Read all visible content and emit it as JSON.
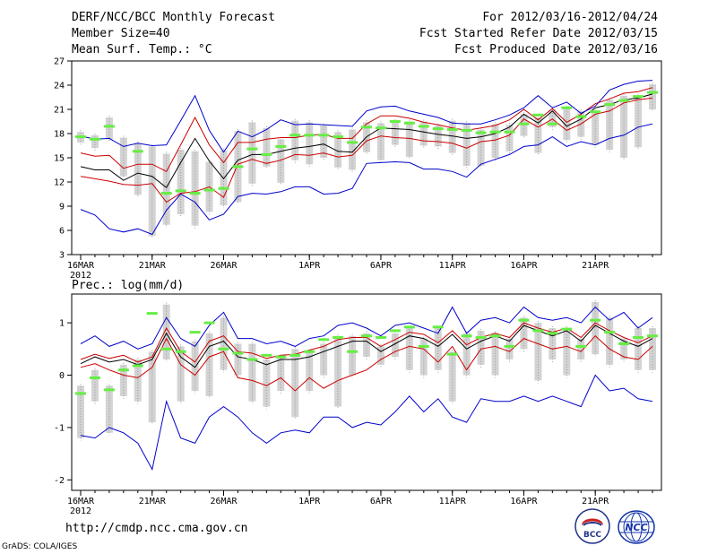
{
  "header": {
    "title": "DERF/NCC/BCC Monthly Forecast",
    "member_size": "Member Size=40",
    "variable": "Mean Surf. Temp.: °C",
    "period": "For 2012/03/16-2012/04/24",
    "started": "Fcst Started Refer Date 2012/03/15",
    "produced": "Fcst Produced Date 2012/03/16"
  },
  "footer": {
    "url": "http://cmdp.ncc.cma.gov.cn",
    "credit": "GrADS: COLA/IGES",
    "logo_bcc": "BCC",
    "logo_ncc": "NCC"
  },
  "colors": {
    "ensemble_mean": "#000000",
    "spread": "#cc0000",
    "extremes": "#0000cc",
    "observation": "#66ee44",
    "bar": "#d3d3d3",
    "dots": "#999999"
  },
  "chart_data": [
    {
      "type": "line",
      "title": "Mean Surf. Temp.: °C",
      "xlabel": "",
      "ylabel": "°C",
      "ylim": [
        3,
        27
      ],
      "yticks": [
        3,
        6,
        9,
        12,
        15,
        18,
        21,
        24,
        27
      ],
      "xtick_labels": [
        "16MAR",
        "21MAR",
        "26MAR",
        "1APR",
        "6APR",
        "11APR",
        "16APR",
        "21APR"
      ],
      "xtick_days": [
        0,
        5,
        10,
        16,
        21,
        26,
        31,
        36
      ],
      "year_label": "2012",
      "series": [
        {
          "name": "max",
          "values": [
            8.6,
            7.9,
            6.2,
            5.8,
            6.2,
            5.5,
            8.5,
            10.5,
            9.5,
            7.3,
            8.0,
            10.2,
            10.6,
            10.5,
            10.8,
            11.4,
            11.4,
            10.5,
            10.6,
            11.2,
            14.3,
            14.4,
            14.5,
            14.4,
            13.6,
            13.6,
            13.3,
            12.6,
            14.2,
            14.8,
            15.4,
            16.4,
            16.6,
            17.6,
            16.4,
            17.0,
            16.6,
            17.4,
            17.8,
            18.8,
            19.2
          ]
        },
        {
          "name": "spread_low",
          "values": [
            12.7,
            12.4,
            12.1,
            11.7,
            11.6,
            11.8,
            9.5,
            10.6,
            10.8,
            11.4,
            10.1,
            14.2,
            14.8,
            14.3,
            14.7,
            15.4,
            15.3,
            15.6,
            15.1,
            15.3,
            17.1,
            17.7,
            17.5,
            17.4,
            17.1,
            17.0,
            16.8,
            16.2,
            17.0,
            17.2,
            17.8,
            19.8,
            18.8,
            19.8,
            18.4,
            19.2,
            20.4,
            20.8,
            21.8,
            22.2,
            22.4
          ]
        },
        {
          "name": "ensemble_mean",
          "values": [
            13.9,
            13.5,
            13.5,
            12.2,
            13.1,
            12.7,
            11.3,
            14.4,
            17.4,
            14.6,
            12.4,
            14.7,
            15.4,
            15.4,
            15.8,
            16.2,
            16.4,
            16.7,
            15.8,
            15.7,
            17.6,
            18.7,
            18.6,
            18.5,
            18.2,
            17.9,
            17.7,
            17.4,
            17.6,
            18.0,
            18.8,
            20.4,
            19.3,
            20.8,
            18.9,
            19.8,
            21.2,
            21.6,
            22.2,
            22.4,
            22.9
          ]
        },
        {
          "name": "spread_high",
          "values": [
            15.6,
            15.2,
            15.3,
            13.7,
            14.2,
            14.2,
            13.3,
            16.6,
            20.0,
            16.6,
            14.4,
            16.9,
            16.9,
            17.3,
            17.5,
            17.5,
            17.8,
            17.9,
            17.4,
            17.4,
            19.2,
            20.2,
            20.2,
            19.9,
            19.4,
            19.1,
            18.7,
            18.4,
            18.7,
            19.0,
            19.7,
            21.0,
            19.7,
            21.1,
            19.4,
            20.4,
            21.7,
            22.3,
            23.0,
            23.2,
            23.7
          ]
        },
        {
          "name": "min",
          "values": [
            17.7,
            17.3,
            17.4,
            16.4,
            16.8,
            16.5,
            16.6,
            19.6,
            22.7,
            18.4,
            15.7,
            18.3,
            17.6,
            18.5,
            19.7,
            19.1,
            19.2,
            19.1,
            19.0,
            18.9,
            20.8,
            21.3,
            21.4,
            20.8,
            20.4,
            20.0,
            19.3,
            19.2,
            19.2,
            19.7,
            20.3,
            21.2,
            22.7,
            21.2,
            21.9,
            20.5,
            21.4,
            23.4,
            24.1,
            24.5,
            24.6
          ]
        }
      ],
      "observations": [
        17.6,
        17.3,
        18.9,
        null,
        15.8,
        null,
        10.6,
        10.9,
        10.6,
        11.0,
        11.2,
        13.9,
        16.1,
        15.4,
        16.4,
        17.8,
        17.8,
        17.8,
        17.6,
        16.9,
        18.8,
        18.7,
        19.5,
        19.3,
        18.9,
        18.6,
        18.5,
        18.4,
        18.1,
        18.2,
        18.2,
        19.2,
        20.3,
        19.2,
        21.2,
        20.1,
        20.7,
        21.6,
        22.1,
        22.6,
        23.1
      ],
      "bars": [
        [
          16.9,
          18.2
        ],
        [
          16.2,
          17.8
        ],
        [
          17.3,
          20.0
        ],
        [
          12.7,
          17.5
        ],
        [
          10.4,
          16.8
        ],
        [
          5.3,
          16.4
        ],
        [
          6.7,
          15.5
        ],
        [
          8.0,
          16.0
        ],
        [
          6.6,
          15.8
        ],
        [
          8.3,
          14.5
        ],
        [
          9.1,
          15.9
        ],
        [
          9.5,
          18.3
        ],
        [
          11.8,
          19.4
        ],
        [
          13.9,
          18.7
        ],
        [
          11.9,
          17.3
        ],
        [
          14.7,
          19.6
        ],
        [
          14.2,
          19.4
        ],
        [
          15.0,
          19.0
        ],
        [
          13.8,
          18.2
        ],
        [
          13.5,
          18.5
        ],
        [
          15.7,
          19.4
        ],
        [
          14.7,
          19.3
        ],
        [
          16.6,
          19.6
        ],
        [
          15.1,
          19.5
        ],
        [
          16.5,
          19.5
        ],
        [
          16.4,
          19.0
        ],
        [
          15.6,
          19.6
        ],
        [
          14.0,
          19.3
        ],
        [
          14.0,
          18.5
        ],
        [
          15.0,
          19.2
        ],
        [
          15.8,
          19.1
        ],
        [
          17.7,
          20.4
        ],
        [
          15.6,
          20.0
        ],
        [
          18.8,
          21.0
        ],
        [
          17.2,
          21.2
        ],
        [
          17.6,
          20.8
        ],
        [
          16.6,
          20.8
        ],
        [
          16.0,
          22.2
        ],
        [
          15.0,
          22.7
        ],
        [
          16.3,
          22.7
        ],
        [
          21.0,
          24.1
        ]
      ],
      "extra_line": {
        "name": "obs_fragment",
        "values": [
          17.5,
          17.4,
          17.2,
          17.8
        ]
      }
    },
    {
      "type": "line",
      "title": "Prec.: log(mm/d)",
      "xlabel": "",
      "ylabel": "log(mm/d)",
      "ylim": [
        -2.2,
        1.55
      ],
      "yticks": [
        -2,
        -1,
        0,
        1
      ],
      "xtick_labels": [
        "16MAR",
        "21MAR",
        "26MAR",
        "1APR",
        "6APR",
        "11APR",
        "16APR",
        "21APR"
      ],
      "xtick_days": [
        0,
        5,
        10,
        16,
        21,
        26,
        31,
        36
      ],
      "year_label": "2012",
      "series": [
        {
          "name": "min",
          "values": [
            -1.15,
            -1.2,
            -1.0,
            -1.1,
            -1.3,
            -1.8,
            -0.5,
            -1.2,
            -1.3,
            -0.8,
            -0.6,
            -0.8,
            -1.1,
            -1.3,
            -1.1,
            -1.05,
            -1.1,
            -0.8,
            -0.8,
            -1.0,
            -0.9,
            -0.95,
            -0.7,
            -0.4,
            -0.7,
            -0.45,
            -0.8,
            -0.9,
            -0.45,
            -0.5,
            -0.5,
            -0.4,
            -0.5,
            -0.4,
            -0.5,
            -0.6,
            0.0,
            -0.3,
            -0.25,
            -0.45,
            -0.5
          ]
        },
        {
          "name": "spread_low",
          "values": [
            0.15,
            0.22,
            0.1,
            0.0,
            -0.05,
            0.15,
            0.7,
            0.2,
            0.0,
            0.35,
            0.45,
            -0.05,
            -0.1,
            -0.2,
            -0.05,
            -0.3,
            -0.05,
            -0.25,
            -0.1,
            0.0,
            0.1,
            0.3,
            0.45,
            0.55,
            0.5,
            0.25,
            0.55,
            0.1,
            0.5,
            0.55,
            0.45,
            0.7,
            0.6,
            0.5,
            0.55,
            0.45,
            0.75,
            0.5,
            0.35,
            0.3,
            0.55
          ]
        },
        {
          "name": "ensemble_mean",
          "values": [
            0.22,
            0.35,
            0.25,
            0.3,
            0.2,
            0.3,
            0.8,
            0.35,
            0.15,
            0.55,
            0.65,
            0.35,
            0.3,
            0.2,
            0.3,
            0.3,
            0.35,
            0.45,
            0.55,
            0.65,
            0.65,
            0.45,
            0.6,
            0.75,
            0.7,
            0.55,
            0.78,
            0.5,
            0.65,
            0.75,
            0.65,
            0.95,
            0.85,
            0.75,
            0.85,
            0.65,
            0.95,
            0.8,
            0.65,
            0.55,
            0.7
          ]
        },
        {
          "name": "spread_high",
          "values": [
            0.3,
            0.4,
            0.32,
            0.38,
            0.25,
            0.35,
            0.9,
            0.45,
            0.25,
            0.65,
            0.75,
            0.45,
            0.42,
            0.32,
            0.38,
            0.4,
            0.48,
            0.55,
            0.68,
            0.72,
            0.72,
            0.55,
            0.68,
            0.82,
            0.78,
            0.62,
            0.85,
            0.58,
            0.72,
            0.8,
            0.72,
            1.0,
            0.9,
            0.82,
            0.9,
            0.72,
            1.0,
            0.85,
            0.72,
            0.62,
            0.75
          ]
        },
        {
          "name": "max",
          "values": [
            0.6,
            0.75,
            0.55,
            0.65,
            0.5,
            0.6,
            1.1,
            0.7,
            0.55,
            0.95,
            1.2,
            0.7,
            0.7,
            0.6,
            0.65,
            0.55,
            0.7,
            0.75,
            0.95,
            1.0,
            0.9,
            0.75,
            0.95,
            1.0,
            0.9,
            0.8,
            1.3,
            0.8,
            1.05,
            1.1,
            1.0,
            1.3,
            1.1,
            1.05,
            1.1,
            1.0,
            1.3,
            1.05,
            1.2,
            0.9,
            1.1
          ]
        }
      ],
      "observations": [
        -0.35,
        -0.05,
        -0.28,
        0.1,
        0.18,
        1.18,
        0.5,
        0.45,
        0.82,
        1.0,
        0.5,
        0.42,
        0.3,
        0.38,
        0.35,
        0.38,
        0.45,
        0.68,
        0.72,
        0.45,
        0.75,
        0.72,
        0.85,
        0.92,
        0.55,
        0.92,
        0.4,
        0.75,
        0.72,
        0.75,
        0.55,
        1.05,
        0.85,
        0.8,
        0.88,
        0.55,
        1.05,
        0.82,
        0.6,
        0.72,
        0.75
      ],
      "bars": [
        [
          -1.2,
          -0.2
        ],
        [
          -0.5,
          0.1
        ],
        [
          -1.1,
          -0.2
        ],
        [
          -0.4,
          0.2
        ],
        [
          -0.5,
          0.3
        ],
        [
          -0.9,
          0.45
        ],
        [
          0.3,
          1.35
        ],
        [
          -0.5,
          0.55
        ],
        [
          -0.3,
          0.65
        ],
        [
          -0.4,
          0.8
        ],
        [
          0.1,
          1.1
        ],
        [
          0.0,
          0.6
        ],
        [
          -0.5,
          0.6
        ],
        [
          -0.6,
          0.3
        ],
        [
          -0.3,
          0.35
        ],
        [
          -0.8,
          0.5
        ],
        [
          -0.3,
          0.45
        ],
        [
          0.0,
          0.6
        ],
        [
          -0.6,
          0.75
        ],
        [
          0.0,
          0.75
        ],
        [
          0.35,
          0.8
        ],
        [
          0.2,
          0.55
        ],
        [
          0.35,
          0.8
        ],
        [
          0.1,
          0.9
        ],
        [
          0.0,
          0.7
        ],
        [
          0.1,
          0.9
        ],
        [
          -0.5,
          0.45
        ],
        [
          0.0,
          0.8
        ],
        [
          0.2,
          0.85
        ],
        [
          0.0,
          0.8
        ],
        [
          0.3,
          0.7
        ],
        [
          0.5,
          1.1
        ],
        [
          -0.1,
          1.0
        ],
        [
          0.3,
          0.9
        ],
        [
          0.0,
          0.9
        ],
        [
          0.3,
          0.7
        ],
        [
          0.4,
          1.4
        ],
        [
          0.2,
          1.1
        ],
        [
          0.3,
          0.7
        ],
        [
          0.1,
          0.9
        ],
        [
          0.1,
          0.9
        ]
      ]
    }
  ]
}
